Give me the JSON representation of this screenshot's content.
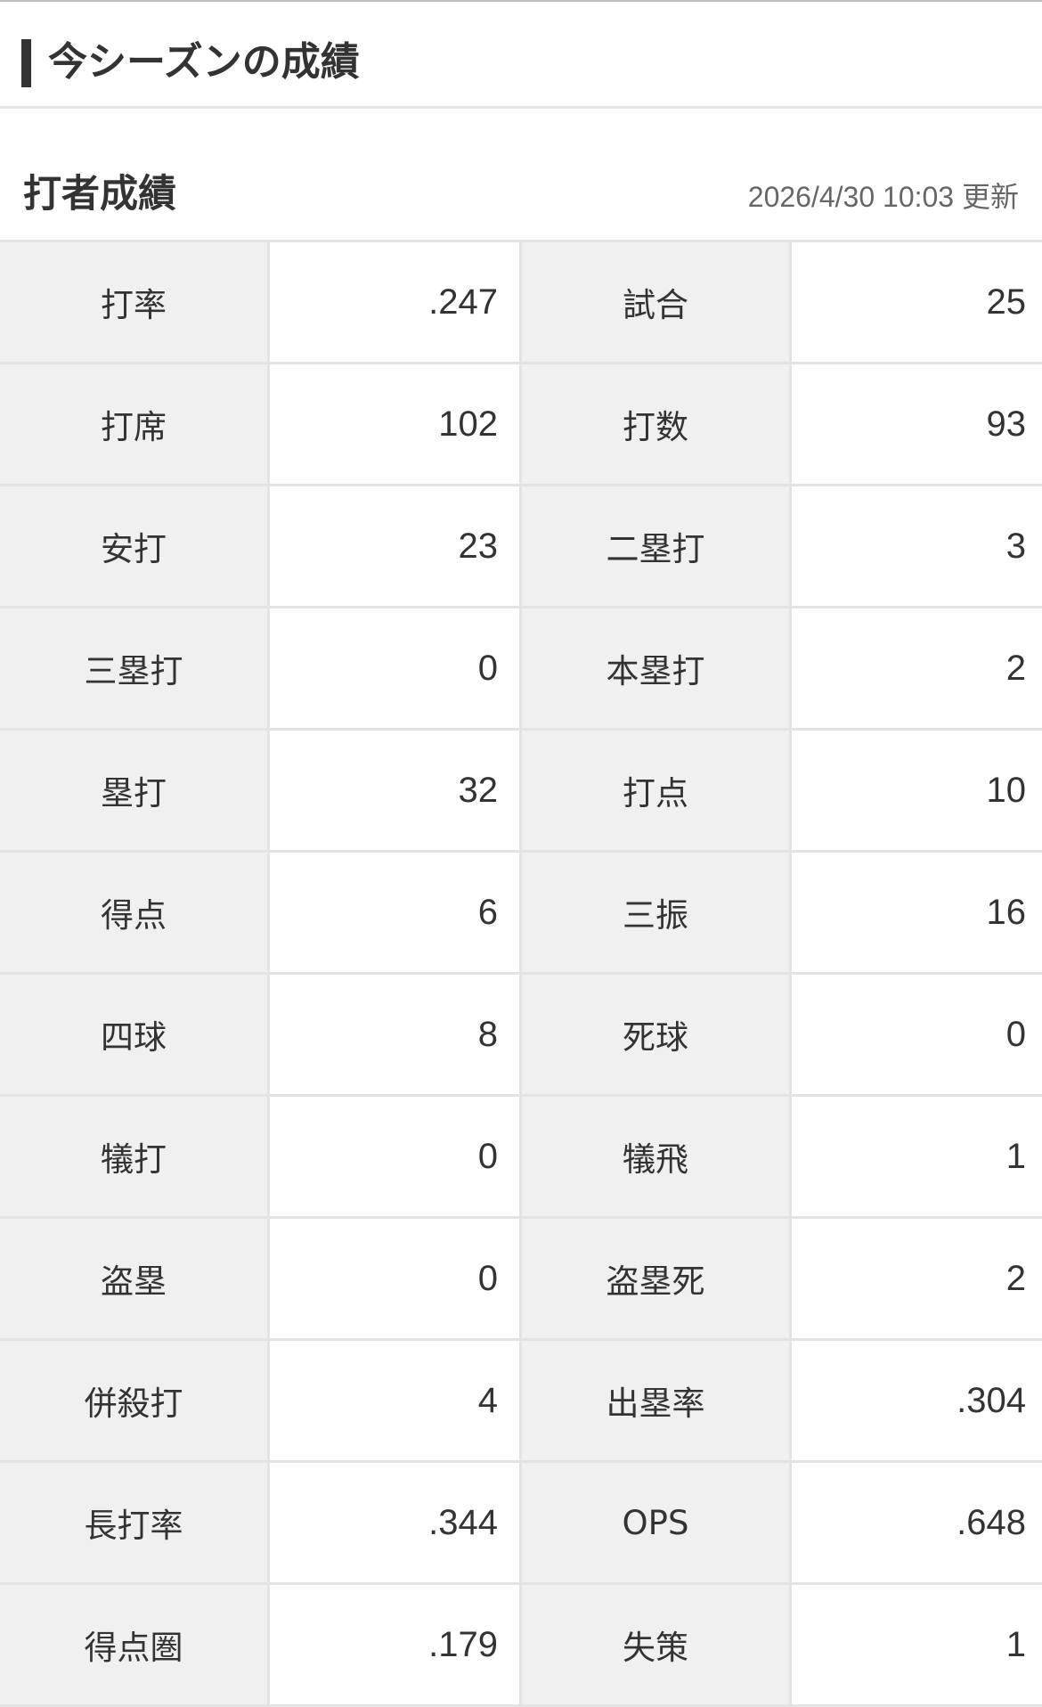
{
  "section": {
    "title": "今シーズンの成績"
  },
  "batting": {
    "title": "打者成績",
    "updated": "2026/4/30 10:03 更新",
    "rows": [
      {
        "l1": "打率",
        "v1": ".247",
        "l2": "試合",
        "v2": "25"
      },
      {
        "l1": "打席",
        "v1": "102",
        "l2": "打数",
        "v2": "93"
      },
      {
        "l1": "安打",
        "v1": "23",
        "l2": "二塁打",
        "v2": "3"
      },
      {
        "l1": "三塁打",
        "v1": "0",
        "l2": "本塁打",
        "v2": "2"
      },
      {
        "l1": "塁打",
        "v1": "32",
        "l2": "打点",
        "v2": "10"
      },
      {
        "l1": "得点",
        "v1": "6",
        "l2": "三振",
        "v2": "16"
      },
      {
        "l1": "四球",
        "v1": "8",
        "l2": "死球",
        "v2": "0"
      },
      {
        "l1": "犠打",
        "v1": "0",
        "l2": "犠飛",
        "v2": "1"
      },
      {
        "l1": "盗塁",
        "v1": "0",
        "l2": "盗塁死",
        "v2": "2"
      },
      {
        "l1": "併殺打",
        "v1": "4",
        "l2": "出塁率",
        "v2": ".304"
      },
      {
        "l1": "長打率",
        "v1": ".344",
        "l2": "OPS",
        "v2": ".648"
      },
      {
        "l1": "得点圏",
        "v1": ".179",
        "l2": "失策",
        "v2": "1"
      }
    ]
  }
}
